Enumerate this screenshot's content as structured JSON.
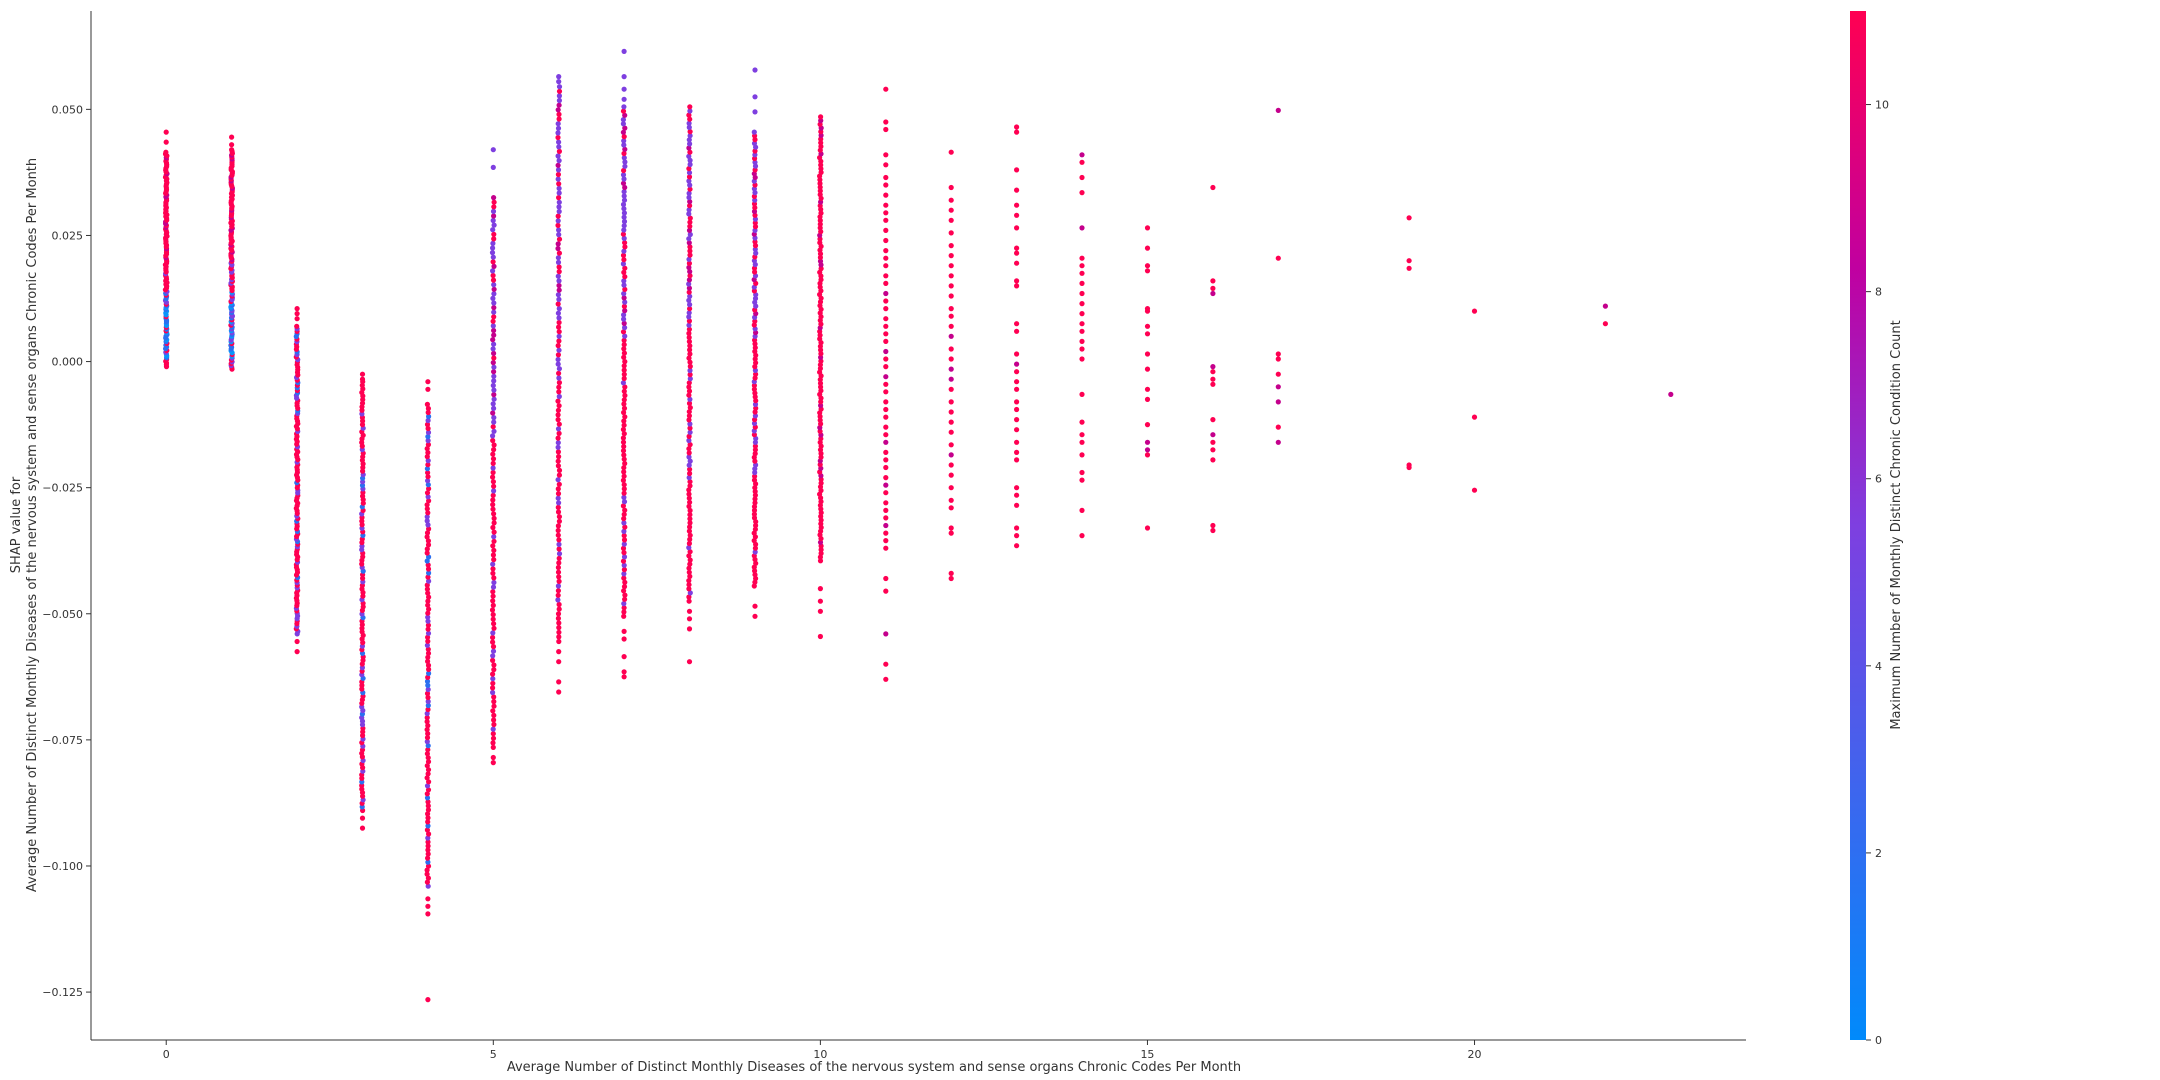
{
  "chart_data": {
    "type": "scatter",
    "title": "",
    "xlabel": "Average Number of Distinct Monthly Diseases of the nervous system and sense organs Chronic Codes Per Month",
    "ylabel_lines": [
      "SHAP value for",
      "Average Number of Distinct Monthly Diseases of the nervous system and sense organs Chronic Codes Per Month"
    ],
    "colorbar_label": "Maximum Number of Monthly Distinct Chronic Condition Count",
    "xlim": [
      -1.15,
      24.15
    ],
    "ylim": [
      -0.1345,
      0.0695
    ],
    "x_ticks": [
      0,
      5,
      10,
      15,
      20
    ],
    "y_ticks": [
      0.05,
      0.025,
      0.0,
      -0.025,
      -0.05,
      -0.075,
      -0.1,
      -0.125
    ],
    "y_tick_labels": [
      "0.050",
      "0.025",
      "0.000",
      "−0.025",
      "−0.050",
      "−0.075",
      "−0.100",
      "−0.125"
    ],
    "colorbar_range": [
      0,
      11
    ],
    "colorbar_ticks": [
      0,
      2,
      4,
      6,
      8,
      10
    ],
    "colormap": [
      "#008afb",
      "#7e3fe0",
      "#ff0052"
    ],
    "grid": false,
    "columns": [
      {
        "x": 0,
        "ymin": -0.001,
        "ymax": 0.0415,
        "extra": [
          0.0455,
          0.0435
        ],
        "color": "mixed-blue"
      },
      {
        "x": 1,
        "ymin": -0.0015,
        "ymax": 0.042,
        "extra": [
          0.0445,
          0.043
        ],
        "color": "mixed-blue"
      },
      {
        "x": 2,
        "ymin": -0.054,
        "ymax": 0.007,
        "extra": [
          0.0105,
          0.0095,
          0.0085,
          -0.0555,
          -0.0575
        ],
        "color": "mixed"
      },
      {
        "x": 3,
        "ymin": -0.089,
        "ymax": -0.004,
        "extra": [
          -0.0025,
          -0.0035,
          -0.0905,
          -0.0925
        ],
        "color": "mixed"
      },
      {
        "x": 4,
        "ymin": -0.104,
        "ymax": -0.0085,
        "extra": [
          -0.004,
          -0.0055,
          -0.1065,
          -0.108,
          -0.1095,
          -0.1265
        ],
        "color": "mixed"
      },
      {
        "x": 5,
        "ymin": -0.0765,
        "ymax": 0.0325,
        "extra": [
          0.042,
          0.0385,
          -0.0785,
          -0.0795
        ],
        "color": "mixed-purple"
      },
      {
        "x": 6,
        "ymin": -0.0555,
        "ymax": 0.0545,
        "extra": [
          0.0565,
          0.0555,
          -0.0575,
          -0.0595,
          -0.0635,
          -0.0655
        ],
        "color": "mixed-purple"
      },
      {
        "x": 7,
        "ymin": -0.0505,
        "ymax": 0.0505,
        "extra": [
          0.0615,
          0.0565,
          0.054,
          0.052,
          -0.0535,
          -0.055,
          -0.0585,
          -0.0615,
          -0.0625
        ],
        "color": "mixed-purple"
      },
      {
        "x": 8,
        "ymin": -0.0475,
        "ymax": 0.0505,
        "extra": [
          -0.0495,
          -0.051,
          -0.053,
          -0.0595
        ],
        "color": "mixed-purple"
      },
      {
        "x": 9,
        "ymin": -0.0445,
        "ymax": 0.0455,
        "extra": [
          0.0578,
          0.0525,
          0.0495,
          -0.0485,
          -0.0505
        ],
        "color": "mixed-purple"
      },
      {
        "x": 10,
        "ymin": -0.0395,
        "ymax": 0.0485,
        "extra": [
          -0.045,
          -0.0475,
          -0.0495,
          -0.0545
        ],
        "color": "mixed-red"
      }
    ],
    "scattered": [
      {
        "x": 11,
        "ys": [
          0.054,
          0.0475,
          0.046,
          0.041,
          0.039,
          0.0365,
          0.035,
          0.033,
          0.031,
          0.0295,
          0.028,
          0.026,
          0.024,
          0.022,
          0.0205,
          0.019,
          0.017,
          0.0155,
          0.0135,
          0.012,
          0.0105,
          0.0085,
          0.007,
          0.0055,
          0.004,
          0.002,
          0.0005,
          -0.001,
          -0.003,
          -0.0045,
          -0.006,
          -0.008,
          -0.0095,
          -0.011,
          -0.013,
          -0.0145,
          -0.016,
          -0.018,
          -0.0195,
          -0.021,
          -0.023,
          -0.0245,
          -0.026,
          -0.028,
          -0.0295,
          -0.031,
          -0.0325,
          -0.034,
          -0.0355,
          -0.037,
          -0.043,
          -0.0455,
          -0.054,
          -0.06,
          -0.063
        ]
      },
      {
        "x": 12,
        "ys": [
          0.0415,
          0.0345,
          0.032,
          0.03,
          0.028,
          0.0255,
          0.023,
          0.021,
          0.019,
          0.017,
          0.015,
          0.013,
          0.0105,
          0.009,
          0.007,
          0.005,
          0.0025,
          0.0005,
          -0.0015,
          -0.0035,
          -0.0055,
          -0.008,
          -0.01,
          -0.012,
          -0.014,
          -0.0165,
          -0.0185,
          -0.0205,
          -0.0225,
          -0.025,
          -0.0275,
          -0.029,
          -0.033,
          -0.034,
          -0.042,
          -0.043
        ]
      },
      {
        "x": 13,
        "ys": [
          0.0465,
          0.0455,
          0.038,
          0.034,
          0.031,
          0.029,
          0.0265,
          0.0225,
          0.0215,
          0.0195,
          0.016,
          0.015,
          0.0075,
          0.006,
          0.0015,
          -0.0005,
          -0.002,
          -0.004,
          -0.0055,
          -0.008,
          -0.0095,
          -0.0115,
          -0.0135,
          -0.016,
          -0.018,
          -0.0195,
          -0.025,
          -0.0265,
          -0.0285,
          -0.033,
          -0.0345,
          -0.0365
        ]
      },
      {
        "x": 14,
        "ys": [
          0.041,
          0.0395,
          0.0365,
          0.0335,
          0.0265,
          0.0205,
          0.019,
          0.0175,
          0.0155,
          0.0135,
          0.0115,
          0.0095,
          0.0075,
          0.006,
          0.004,
          0.0025,
          0.0005,
          -0.0065,
          -0.012,
          -0.0145,
          -0.016,
          -0.0185,
          -0.022,
          -0.0235,
          -0.0295,
          -0.0345
        ]
      },
      {
        "x": 15,
        "ys": [
          0.0265,
          0.0225,
          0.019,
          0.018,
          0.0105,
          0.01,
          0.007,
          0.0055,
          0.0015,
          -0.0015,
          -0.0055,
          -0.0075,
          -0.0125,
          -0.016,
          -0.0175,
          -0.0185,
          -0.033
        ]
      },
      {
        "x": 16,
        "ys": [
          0.0345,
          0.016,
          0.0145,
          0.0135,
          -0.001,
          -0.002,
          -0.0035,
          -0.0045,
          -0.0115,
          -0.0145,
          -0.016,
          -0.0175,
          -0.0195,
          -0.0325,
          -0.0335
        ]
      },
      {
        "x": 17,
        "ys": [
          0.0498,
          0.0205,
          0.0015,
          0.0005,
          -0.0025,
          -0.005,
          -0.008,
          -0.013,
          -0.016
        ]
      },
      {
        "x": 19,
        "ys": [
          0.0285,
          0.02,
          0.0185,
          -0.0205,
          -0.021
        ]
      },
      {
        "x": 20,
        "ys": [
          0.01,
          -0.011,
          -0.0255
        ]
      },
      {
        "x": 22,
        "ys": [
          0.011,
          0.0075
        ]
      },
      {
        "x": 23,
        "ys": [
          -0.0065
        ]
      }
    ]
  }
}
